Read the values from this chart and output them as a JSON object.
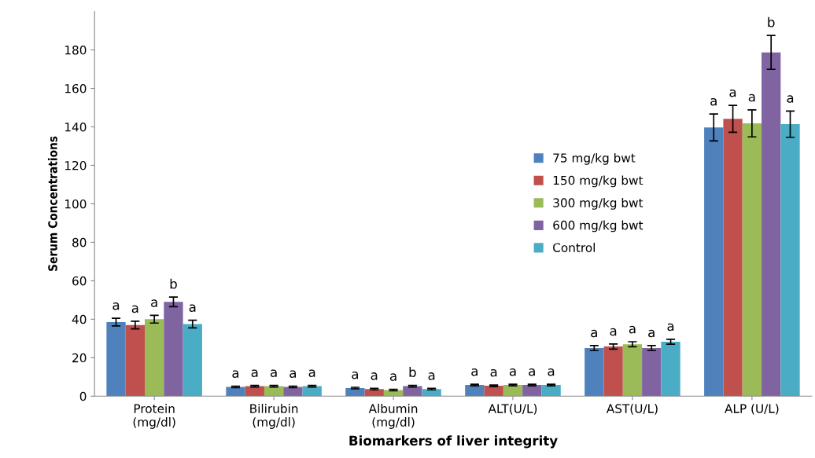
{
  "chart_data": {
    "type": "bar",
    "xlabel": "Biomarkers of liver integrity",
    "ylabel": "Serum Concentrations",
    "categories": [
      "Protein\n(mg/dl)",
      "Bilirubin\n(mg/dl)",
      "Albumin\n(mg/dl)",
      "ALT(U/L)",
      "AST(U/L)",
      "ALP (U/L)"
    ],
    "series": [
      {
        "name": "75 mg/kg bwt",
        "color": "#4f81bd",
        "values": [
          38.5,
          4.8,
          4.2,
          5.8,
          25,
          139.7
        ],
        "errors": [
          2,
          0.4,
          0.4,
          0.4,
          1.3,
          7
        ],
        "value_labels": [
          "a",
          "a",
          "a",
          "a",
          "a",
          "a"
        ]
      },
      {
        "name": "150 mg/kg bwt",
        "color": "#c0504d",
        "values": [
          37,
          5.2,
          3.7,
          5.4,
          25.8,
          144.2
        ],
        "errors": [
          2,
          0.4,
          0.4,
          0.4,
          1.3,
          7
        ],
        "value_labels": [
          "a",
          "a",
          "a",
          "a",
          "a",
          "a"
        ]
      },
      {
        "name": "300 mg/kg bwt",
        "color": "#9bbb59",
        "values": [
          40,
          5.2,
          3.2,
          5.8,
          27,
          141.8
        ],
        "errors": [
          2,
          0.4,
          0.4,
          0.4,
          1.3,
          7
        ],
        "value_labels": [
          "a",
          "a",
          "a",
          "a",
          "a",
          "a"
        ]
      },
      {
        "name": "600 mg/kg bwt",
        "color": "#8064a2",
        "values": [
          49,
          4.8,
          5.2,
          5.8,
          25,
          178.7
        ],
        "errors": [
          2.5,
          0.4,
          0.4,
          0.4,
          1.3,
          8.8
        ],
        "value_labels": [
          "b",
          "a",
          "b",
          "a",
          "a",
          "b"
        ]
      },
      {
        "name": "Control",
        "color": "#4bacc6",
        "values": [
          37.5,
          5.2,
          3.7,
          5.8,
          28.3,
          141.4
        ],
        "errors": [
          2,
          0.4,
          0.4,
          0.4,
          1.3,
          6.8
        ],
        "value_labels": [
          "a",
          "a",
          "a",
          "a",
          "a",
          "a"
        ]
      }
    ],
    "ylim": [
      0,
      200
    ],
    "yticks": [
      0,
      20,
      40,
      60,
      80,
      100,
      120,
      140,
      160,
      180
    ],
    "grid": false,
    "legend": "right"
  }
}
